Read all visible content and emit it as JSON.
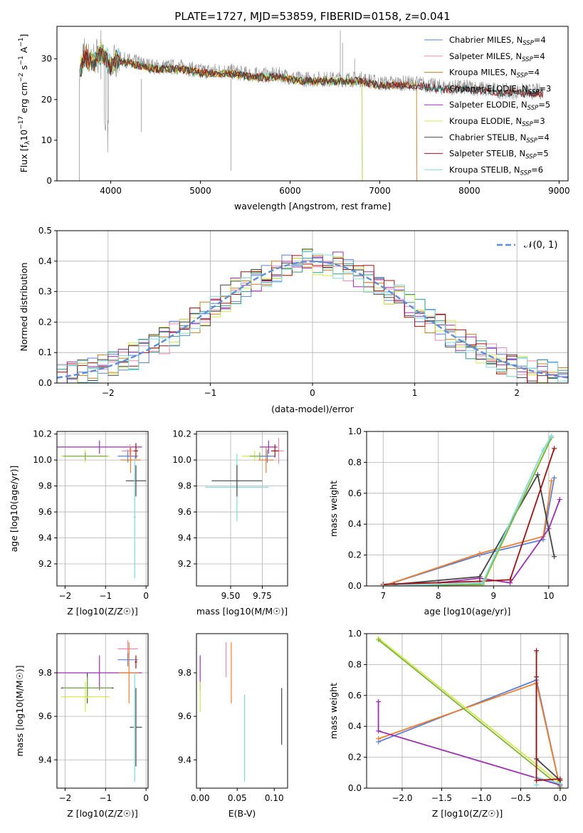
{
  "figure_title": "PLATE=1727, MJD=53859, FIBERID=0158, z=0.041",
  "colors": {
    "Chabrier MILES": "#5b7fdb",
    "Salpeter MILES": "#ee88b0",
    "Kroupa MILES": "#c87f1d",
    "Chabrier ELODIE": "#2a9a8a",
    "Salpeter ELODIE": "#9b2fb0",
    "Kroupa ELODIE": "#d4e84a",
    "Chabrier STELIB": "#444444",
    "Salpeter STELIB": "#a01010",
    "Kroupa STELIB": "#7fd9dd",
    "normal": "#5b8fd9",
    "orange": "#ee7f2a",
    "green": "#7cb342"
  },
  "chart_data": [
    {
      "type": "line",
      "title": "PLATE=1727, MJD=53859, FIBERID=0158, z=0.041",
      "xlabel": "wavelength [Angstrom, rest frame]",
      "ylabel": "Flux [f_λ10^-17 erg cm^-2 s^-1 A^-1]",
      "xlim": [
        3400,
        9100
      ],
      "ylim": [
        0,
        38
      ],
      "xticks": [
        "4000",
        "5000",
        "6000",
        "7000",
        "8000",
        "9000"
      ],
      "yticks": [
        "0",
        "10",
        "20",
        "30"
      ],
      "grid": false,
      "legend_position": "top-right",
      "legend": [
        {
          "label": "Chabrier MILES, N",
          "n": "4"
        },
        {
          "label": "Salpeter MILES, N",
          "n": "4"
        },
        {
          "label": "Kroupa MILES, N",
          "n": "4"
        },
        {
          "label": "Chabrier ELODIE, N",
          "n": "3"
        },
        {
          "label": "Salpeter ELODIE, N",
          "n": "5"
        },
        {
          "label": "Kroupa ELODIE, N",
          "n": "3"
        },
        {
          "label": "Chabrier STELIB, N",
          "n": "4"
        },
        {
          "label": "Salpeter STELIB, N",
          "n": "5"
        },
        {
          "label": "Kroupa STELIB, N",
          "n": "6"
        }
      ],
      "legend_sub": "SSP",
      "data_trace": {
        "x": [
          3650,
          3700,
          3800,
          3900,
          4000,
          4100,
          4300,
          4500,
          4800,
          5000,
          5300,
          5600,
          5900,
          6100,
          6400,
          6600,
          6800,
          7000,
          7400,
          7700,
          8000,
          8400,
          8800
        ],
        "y": [
          27,
          31,
          30,
          32,
          29,
          30,
          29,
          28,
          28,
          27,
          27,
          26,
          26,
          25,
          25,
          25,
          25,
          24,
          24,
          23,
          23,
          22,
          22
        ]
      },
      "model_ranges": {
        "MILES": [
          3600,
          7410
        ],
        "ELODIE": [
          3600,
          6800
        ],
        "STELIB": [
          3600,
          8800
        ]
      }
    },
    {
      "type": "histogram",
      "xlabel": "(data-model)/error",
      "ylabel": "Normed distribution",
      "xlim": [
        -2.5,
        2.5
      ],
      "ylim": [
        0,
        0.5
      ],
      "xticks": [
        "−2",
        "−1",
        "0",
        "1",
        "2"
      ],
      "yticks": [
        "0.0",
        "0.1",
        "0.2",
        "0.3",
        "0.4",
        "0.5"
      ],
      "grid": true,
      "legend_position": "top-right",
      "legend": [
        "𝒩(0, 1)"
      ],
      "bin_width": 0.1,
      "histogram_approx": [
        0.02,
        0.04,
        0.05,
        0.06,
        0.06,
        0.08,
        0.1,
        0.13,
        0.16,
        0.2,
        0.23,
        0.28,
        0.31,
        0.34,
        0.36,
        0.38,
        0.39,
        0.4,
        0.39,
        0.38,
        0.36,
        0.33,
        0.3,
        0.27,
        0.23,
        0.19,
        0.15,
        0.12,
        0.09,
        0.07,
        0.05,
        0.04,
        0.03
      ]
    },
    {
      "type": "scatter",
      "xlabel": "Z [log10(Z/Z☉)]",
      "ylabel": "age [log10(age/yr)]",
      "xlim": [
        -2.2,
        0.05
      ],
      "ylim": [
        9.03,
        10.22
      ],
      "xticks": [
        "−2",
        "−1",
        "0"
      ],
      "yticks": [
        "9.2",
        "9.4",
        "9.6",
        "9.8",
        "10.0",
        "10.2"
      ],
      "grid": true,
      "points": [
        {
          "c": "Salpeter ELODIE",
          "x": -1.15,
          "y": 10.1,
          "xerr": 1.05,
          "yerr": 0.05
        },
        {
          "c": "Kroupa ELODIE",
          "x": -1.5,
          "y": 10.03,
          "xerr": 0.6,
          "yerr": 0.05
        },
        {
          "c": "green",
          "x": -1.5,
          "y": 10.03,
          "xerr": 0.55,
          "yerr": 0.03
        },
        {
          "c": "Chabrier MILES",
          "x": -0.45,
          "y": 10.03,
          "xerr": 0.25,
          "yerr": 0.05
        },
        {
          "c": "Salpeter MILES",
          "x": -0.4,
          "y": 10.07,
          "xerr": 0.2,
          "yerr": 0.05
        },
        {
          "c": "orange",
          "x": -0.38,
          "y": 10.0,
          "xerr": 0.25,
          "yerr": 0.1
        },
        {
          "c": "Salpeter STELIB",
          "x": -0.25,
          "y": 10.07,
          "xerr": 0.05,
          "yerr": 0.06
        },
        {
          "c": "Chabrier STELIB",
          "x": -0.25,
          "y": 9.84,
          "xerr": 0.25,
          "yerr": 0.12
        },
        {
          "c": "Kroupa STELIB",
          "x": -0.28,
          "y": 9.56,
          "xerr": 0.03,
          "yerr": 0.47
        }
      ]
    },
    {
      "type": "scatter",
      "xlabel": "mass [log10(M/M☉)]",
      "ylabel": "",
      "xlim": [
        9.23,
        9.95
      ],
      "ylim": [
        9.03,
        10.22
      ],
      "xticks": [
        "9.50",
        "9.75"
      ],
      "yticks": [
        "9.2",
        "9.4",
        "9.6",
        "9.8",
        "10.0",
        "10.2"
      ],
      "grid": true,
      "points": [
        {
          "c": "Kroupa STELIB",
          "x": 9.55,
          "y": 9.79,
          "xerr": 0.25,
          "yerr": 0.26
        },
        {
          "c": "Chabrier STELIB",
          "x": 9.55,
          "y": 9.84,
          "xerr": 0.2,
          "yerr": 0.12
        },
        {
          "c": "Kroupa ELODIE",
          "x": 9.69,
          "y": 10.03,
          "xerr": 0.1,
          "yerr": 0.04
        },
        {
          "c": "green",
          "x": 9.73,
          "y": 10.03,
          "xerr": 0.08,
          "yerr": 0.03
        },
        {
          "c": "Salpeter ELODIE",
          "x": 9.8,
          "y": 10.1,
          "xerr": 0.07,
          "yerr": 0.05
        },
        {
          "c": "Chabrier MILES",
          "x": 9.79,
          "y": 10.03,
          "xerr": 0.06,
          "yerr": 0.05
        },
        {
          "c": "orange",
          "x": 9.78,
          "y": 10.0,
          "xerr": 0.06,
          "yerr": 0.1
        },
        {
          "c": "Salpeter MILES",
          "x": 9.88,
          "y": 10.07,
          "xerr": 0.04,
          "yerr": 0.1
        },
        {
          "c": "Salpeter STELIB",
          "x": 9.85,
          "y": 10.07,
          "xerr": 0.03,
          "yerr": 0.05
        }
      ]
    },
    {
      "type": "line",
      "xlabel": "age [log10(age/yr)]",
      "ylabel": "mass weight",
      "xlim": [
        6.7,
        10.35
      ],
      "ylim": [
        0,
        1
      ],
      "xticks": [
        "7",
        "8",
        "9",
        "10"
      ],
      "yticks": [
        "0.0",
        "0.2",
        "0.4",
        "0.6",
        "0.8",
        "1.0"
      ],
      "grid": true,
      "series": [
        {
          "c": "Chabrier MILES",
          "x": [
            7.0,
            8.75,
            9.9,
            10.1
          ],
          "y": [
            0.0,
            0.2,
            0.3,
            0.7
          ]
        },
        {
          "c": "orange",
          "x": [
            7.0,
            8.75,
            9.9,
            10.05
          ],
          "y": [
            0.0,
            0.21,
            0.32,
            0.68
          ]
        },
        {
          "c": "Salpeter ELODIE",
          "x": [
            8.0,
            8.75,
            9.3,
            10.0,
            10.2
          ],
          "y": [
            0.02,
            0.05,
            0.02,
            0.37,
            0.56
          ]
        },
        {
          "c": "Chabrier STELIB",
          "x": [
            7.2,
            8.75,
            9.8,
            10.1
          ],
          "y": [
            0.01,
            0.06,
            0.72,
            0.19
          ]
        },
        {
          "c": "Salpeter STELIB",
          "x": [
            7.0,
            8.75,
            9.3,
            10.1
          ],
          "y": [
            0.01,
            0.03,
            0.04,
            0.89
          ]
        },
        {
          "c": "Kroupa ELODIE",
          "x": [
            7.0,
            8.8,
            10.05
          ],
          "y": [
            0.0,
            0.0,
            0.97
          ]
        },
        {
          "c": "green",
          "x": [
            7.0,
            8.8,
            10.05
          ],
          "y": [
            0.0,
            0.01,
            0.96
          ]
        },
        {
          "c": "Kroupa STELIB",
          "x": [
            7.0,
            8.8,
            9.9,
            10.05
          ],
          "y": [
            0.0,
            0.02,
            0.88,
            0.97
          ]
        }
      ]
    },
    {
      "type": "scatter",
      "xlabel": "Z [log10(Z/Z☉)]",
      "ylabel": "mass [log10(M/M☉)]",
      "xlim": [
        -2.2,
        0.05
      ],
      "ylim": [
        9.27,
        9.98
      ],
      "xticks": [
        "−2",
        "−1",
        "0"
      ],
      "yticks": [
        "9.4",
        "9.6",
        "9.8"
      ],
      "grid": true,
      "points": [
        {
          "c": "Salpeter ELODIE",
          "x": -1.15,
          "y": 9.8,
          "xerr": 1.05,
          "yerr": 0.08
        },
        {
          "c": "Chabrier STELIB",
          "x": -1.45,
          "y": 9.73,
          "xerr": 0.65,
          "yerr": 0.07
        },
        {
          "c": "green",
          "x": -1.45,
          "y": 9.73,
          "xerr": 0.6,
          "yerr": 0.05
        },
        {
          "c": "Kroupa ELODIE",
          "x": -1.5,
          "y": 9.69,
          "xerr": 0.6,
          "yerr": 0.07
        },
        {
          "c": "Salpeter MILES",
          "x": -0.45,
          "y": 9.91,
          "xerr": 0.25,
          "yerr": 0.04
        },
        {
          "c": "Chabrier MILES",
          "x": -0.45,
          "y": 9.86,
          "xerr": 0.25,
          "yerr": 0.03
        },
        {
          "c": "orange",
          "x": -0.42,
          "y": 9.8,
          "xerr": 0.25,
          "yerr": 0.14
        },
        {
          "c": "Salpeter STELIB",
          "x": -0.25,
          "y": 9.85,
          "xerr": 0.03,
          "yerr": 0.03
        },
        {
          "c": "Chabrier STELIB",
          "x": -0.25,
          "y": 9.55,
          "xerr": 0.15,
          "yerr": 0.18
        },
        {
          "c": "Kroupa STELIB",
          "x": -0.28,
          "y": 9.55,
          "xerr": 0.03,
          "yerr": 0.25
        }
      ]
    },
    {
      "type": "scatter",
      "xlabel": "E(B-V)",
      "ylabel": "",
      "xlim": [
        -0.005,
        0.118
      ],
      "ylim": [
        9.27,
        9.98
      ],
      "xticks": [
        "0.00",
        "0.05",
        "0.10"
      ],
      "yticks": [
        "9.4",
        "9.6",
        "9.8"
      ],
      "grid": false,
      "points": [
        {
          "c": "Salpeter ELODIE",
          "x": 0.0,
          "y": 9.8,
          "yerr": 0.08
        },
        {
          "c": "Kroupa ELODIE",
          "x": 0.0,
          "y": 9.69,
          "yerr": 0.07
        },
        {
          "c": "Salpeter MILES",
          "x": 0.035,
          "y": 9.86,
          "yerr": 0.08
        },
        {
          "c": "orange",
          "x": 0.042,
          "y": 9.8,
          "yerr": 0.14
        },
        {
          "c": "Kroupa STELIB",
          "x": 0.06,
          "y": 9.5,
          "yerr": 0.2
        },
        {
          "c": "Chabrier STELIB",
          "x": 0.11,
          "y": 9.6,
          "yerr": 0.13
        }
      ]
    },
    {
      "type": "line",
      "xlabel": "Z [log10(Z/Z☉)]",
      "ylabel": "mass weight",
      "xlim": [
        -2.45,
        0.1
      ],
      "ylim": [
        0,
        1
      ],
      "xticks": [
        "−2.0",
        "−1.5",
        "−1.0",
        "−0.5",
        "0.0"
      ],
      "yticks": [
        "0.0",
        "0.2",
        "0.4",
        "0.6",
        "0.8",
        "1.0"
      ],
      "grid": true,
      "series": [
        {
          "c": "Chabrier MILES",
          "x": [
            -2.3,
            -0.3,
            0.0
          ],
          "y": [
            0.3,
            0.7,
            0.0
          ]
        },
        {
          "c": "orange",
          "x": [
            -2.3,
            -0.3,
            0.0
          ],
          "y": [
            0.32,
            0.68,
            0.0
          ]
        },
        {
          "c": "Kroupa ELODIE",
          "x": [
            -2.3,
            0.0,
            0.0
          ],
          "y": [
            0.97,
            0.03,
            0.0
          ]
        },
        {
          "c": "green",
          "x": [
            -2.3,
            0.0
          ],
          "y": [
            0.96,
            0.01
          ]
        },
        {
          "c": "Salpeter ELODIE",
          "x": [
            -2.3,
            -2.3,
            0.0,
            0.0
          ],
          "y": [
            0.56,
            0.37,
            0.02,
            0.05
          ]
        },
        {
          "c": "Kroupa STELIB",
          "x": [
            -0.3,
            -0.3,
            -0.3,
            0.0
          ],
          "y": [
            0.88,
            0.02,
            0.07,
            0.03
          ]
        },
        {
          "c": "Chabrier STELIB",
          "x": [
            -0.3,
            -0.3,
            0.0
          ],
          "y": [
            0.72,
            0.19,
            0.05
          ]
        },
        {
          "c": "Salpeter STELIB",
          "x": [
            -0.3,
            -0.3,
            0.0
          ],
          "y": [
            0.89,
            0.05,
            0.06
          ]
        }
      ]
    }
  ]
}
